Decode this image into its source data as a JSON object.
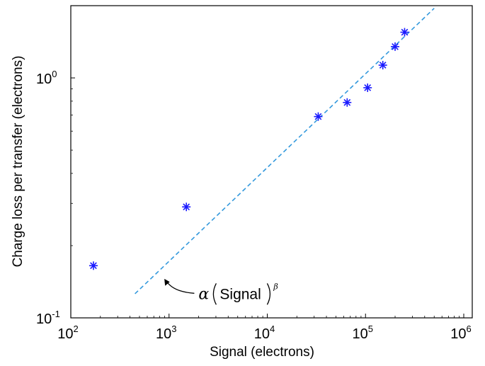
{
  "chart_data": {
    "type": "scatter",
    "x_scale": "log",
    "y_scale": "log",
    "xlim": [
      100,
      1000000
    ],
    "ylim": [
      0.1,
      2.0
    ],
    "grid": false,
    "xlabel": "Signal (electrons)",
    "ylabel": "Charge loss per transfer (electrons)",
    "x_ticks": [
      {
        "value": 100,
        "base": "10",
        "exp": "2"
      },
      {
        "value": 1000,
        "base": "10",
        "exp": "3"
      },
      {
        "value": 10000,
        "base": "10",
        "exp": "4"
      },
      {
        "value": 100000,
        "base": "10",
        "exp": "5"
      },
      {
        "value": 1000000,
        "base": "10",
        "exp": "6"
      }
    ],
    "y_ticks": [
      {
        "value": 0.1,
        "base": "10",
        "exp": "-1"
      },
      {
        "value": 1.0,
        "base": "10",
        "exp": "0"
      }
    ],
    "series": [
      {
        "marker": "asterisk",
        "color": "#1a1aff",
        "x": [
          170,
          1500,
          33000,
          65000,
          105000,
          150000,
          200000,
          250000
        ],
        "y": [
          0.165,
          0.29,
          0.69,
          0.79,
          0.91,
          1.13,
          1.35,
          1.55
        ]
      }
    ],
    "fit_line": {
      "style": "dashed",
      "color": "#3399dd",
      "x": [
        450,
        500000
      ],
      "y": [
        0.126,
        1.95
      ]
    },
    "annotation": {
      "alpha": "α",
      "text": "Signal",
      "exponent": "β",
      "arrow_to": {
        "x": 900,
        "y": 0.145
      }
    }
  }
}
